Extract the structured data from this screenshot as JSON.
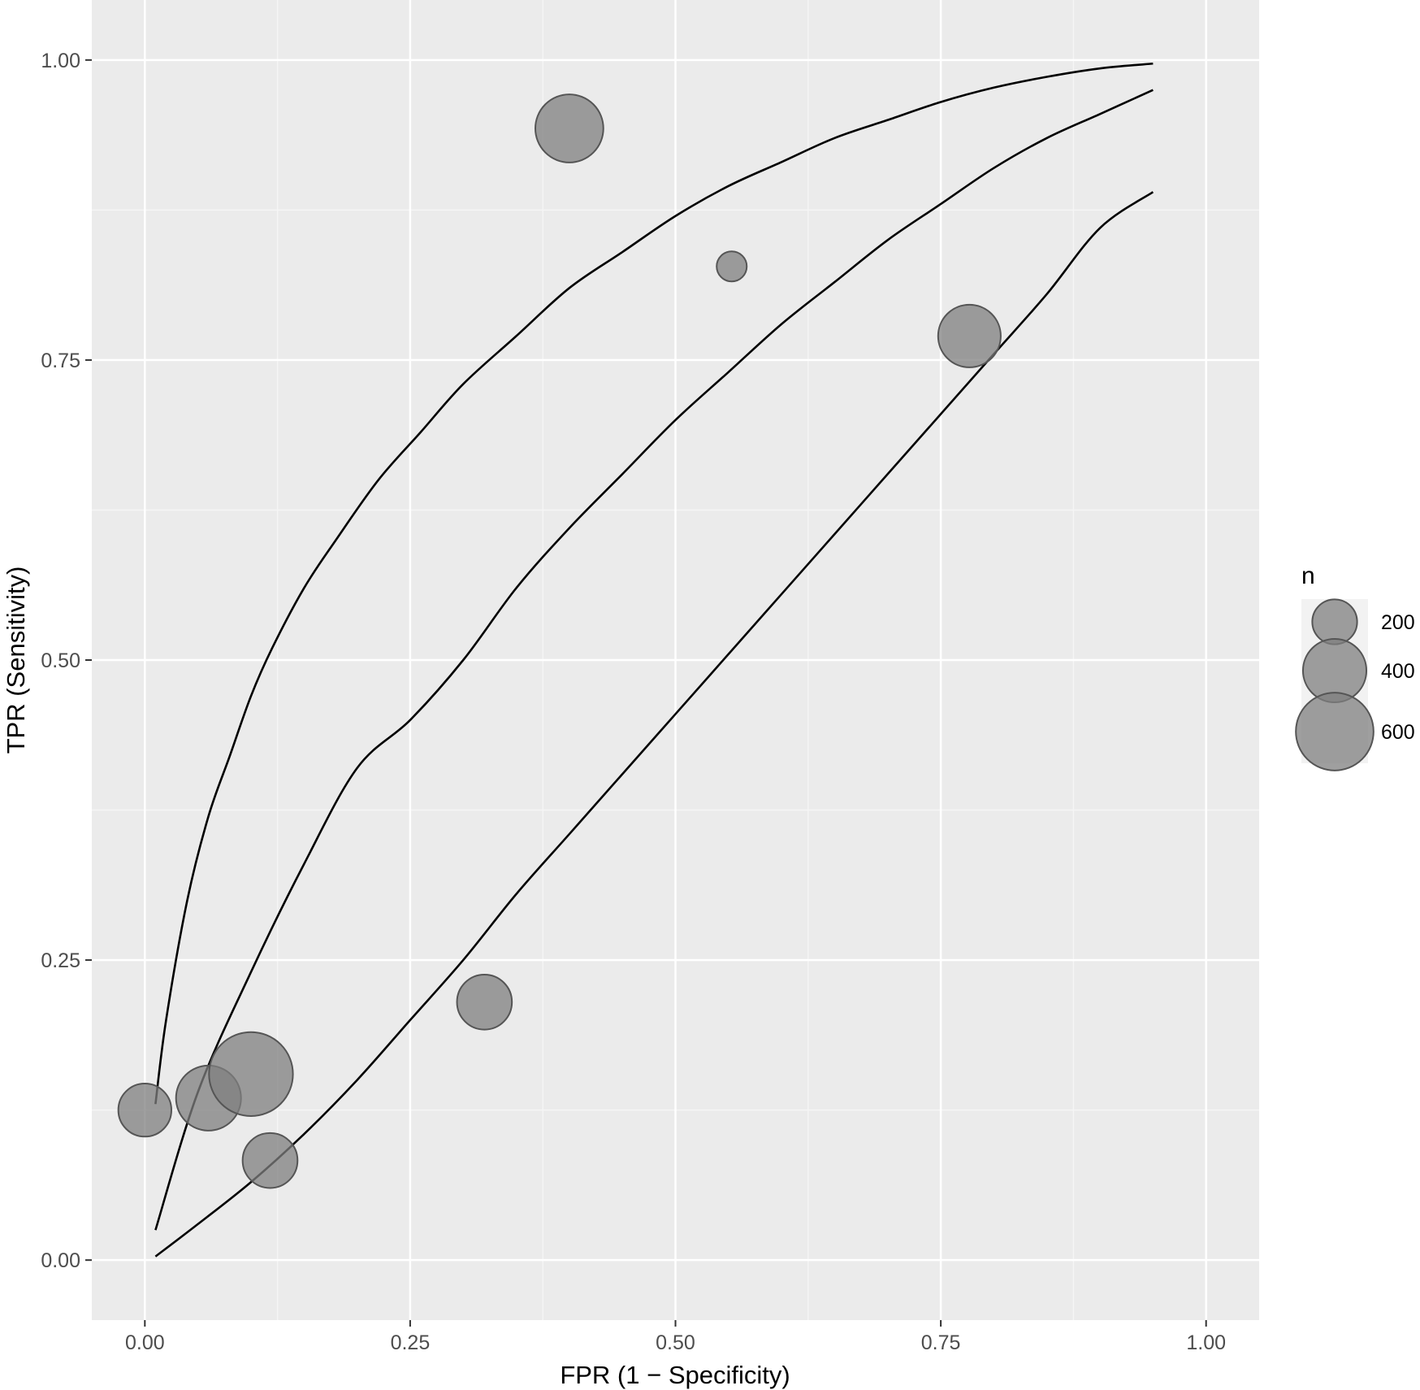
{
  "chart_data": {
    "type": "scatter",
    "xlabel": "FPR (1 − Specificity)",
    "ylabel": "TPR (Sensitivity)",
    "xlim": [
      -0.05,
      1.05
    ],
    "ylim": [
      -0.05,
      1.05
    ],
    "x_ticks": [
      0,
      0.25,
      0.5,
      0.75,
      1
    ],
    "x_tick_labels": [
      "0.00",
      "0.25",
      "0.50",
      "0.75",
      "1.00"
    ],
    "y_ticks": [
      0,
      0.25,
      0.5,
      0.75,
      1
    ],
    "y_tick_labels": [
      "0.00",
      "0.25",
      "0.50",
      "0.75",
      "1.00"
    ],
    "grid": true,
    "points": [
      {
        "x": 0.0,
        "y": 0.125,
        "n": 280
      },
      {
        "x": 0.06,
        "y": 0.135,
        "n": 420
      },
      {
        "x": 0.1,
        "y": 0.155,
        "n": 700
      },
      {
        "x": 0.118,
        "y": 0.083,
        "n": 300
      },
      {
        "x": 0.32,
        "y": 0.215,
        "n": 300
      },
      {
        "x": 0.4,
        "y": 0.943,
        "n": 460
      },
      {
        "x": 0.553,
        "y": 0.828,
        "n": 90
      },
      {
        "x": 0.777,
        "y": 0.77,
        "n": 390
      }
    ],
    "curves": [
      {
        "x": [
          0.01,
          0.02,
          0.04,
          0.06,
          0.08,
          0.1,
          0.12,
          0.15,
          0.18,
          0.22,
          0.26,
          0.3,
          0.35,
          0.4,
          0.45,
          0.5,
          0.55,
          0.6,
          0.65,
          0.7,
          0.75,
          0.8,
          0.85,
          0.9,
          0.95
        ],
        "y": [
          0.13,
          0.2,
          0.3,
          0.37,
          0.42,
          0.47,
          0.51,
          0.56,
          0.6,
          0.65,
          0.69,
          0.73,
          0.77,
          0.81,
          0.84,
          0.87,
          0.895,
          0.915,
          0.935,
          0.95,
          0.965,
          0.977,
          0.986,
          0.993,
          0.997
        ]
      },
      {
        "x": [
          0.01,
          0.05,
          0.1,
          0.15,
          0.2,
          0.25,
          0.3,
          0.35,
          0.4,
          0.45,
          0.5,
          0.55,
          0.6,
          0.65,
          0.7,
          0.75,
          0.8,
          0.85,
          0.9,
          0.95
        ],
        "y": [
          0.025,
          0.14,
          0.24,
          0.33,
          0.41,
          0.45,
          0.5,
          0.56,
          0.61,
          0.655,
          0.7,
          0.74,
          0.78,
          0.815,
          0.85,
          0.88,
          0.91,
          0.935,
          0.955,
          0.975
        ]
      },
      {
        "x": [
          0.01,
          0.05,
          0.1,
          0.15,
          0.2,
          0.25,
          0.3,
          0.35,
          0.4,
          0.45,
          0.5,
          0.55,
          0.6,
          0.65,
          0.7,
          0.75,
          0.8,
          0.85,
          0.9,
          0.95
        ],
        "y": [
          0.003,
          0.03,
          0.065,
          0.105,
          0.15,
          0.2,
          0.25,
          0.305,
          0.355,
          0.405,
          0.455,
          0.505,
          0.555,
          0.605,
          0.655,
          0.705,
          0.755,
          0.805,
          0.86,
          0.89
        ]
      }
    ],
    "legend": {
      "title": "n",
      "placement": "right",
      "entries": [
        {
          "label": "200",
          "n": 200
        },
        {
          "label": "400",
          "n": 400
        },
        {
          "label": "600",
          "n": 600
        }
      ]
    },
    "colors": {
      "panel_background": "#ebebeb",
      "grid_major": "#ffffff",
      "grid_minor": "#f5f5f5",
      "point_fill": "#7f7f7f",
      "point_stroke": "#555555",
      "curve": "#000000",
      "legend_key_background": "#f2f2f2"
    }
  }
}
